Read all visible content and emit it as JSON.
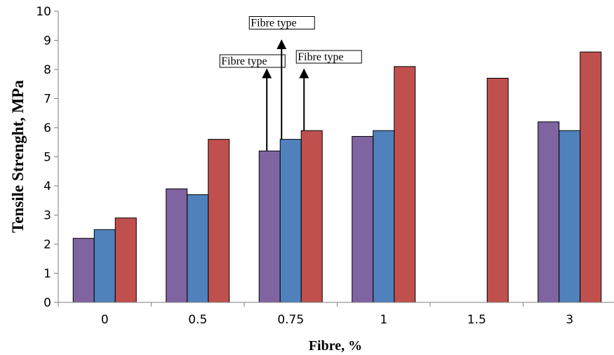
{
  "chart_data": {
    "type": "bar",
    "categories": [
      "0",
      "0.5",
      "0.75",
      "1",
      "1.5",
      "3"
    ],
    "series": [
      {
        "color": "#8064a2",
        "values": [
          2.2,
          3.9,
          5.2,
          5.7,
          null,
          6.2
        ]
      },
      {
        "color": "#4f81bd",
        "values": [
          2.5,
          3.7,
          5.6,
          5.9,
          null,
          5.9
        ]
      },
      {
        "color": "#c0504d",
        "values": [
          2.9,
          5.6,
          5.9,
          8.1,
          7.7,
          8.6
        ]
      }
    ],
    "xlabel": "Fibre, %",
    "ylabel": "Tensile Strenght, MPa",
    "ylim": [
      0,
      10
    ],
    "yticks": [
      "0",
      "1",
      "2",
      "3",
      "4",
      "5",
      "6",
      "7",
      "8",
      "9",
      "10"
    ],
    "grid": false,
    "legend": "none",
    "annotations": [
      {
        "text": "Fibre type",
        "category": "0.75",
        "series": 0,
        "arrow_to": 8.0
      },
      {
        "text": "Fibre type",
        "category": "0.75",
        "series": 1,
        "arrow_to": 9.0
      },
      {
        "text": "Fibre type",
        "category": "0.75",
        "series": 2,
        "arrow_to": 8.0
      }
    ]
  }
}
